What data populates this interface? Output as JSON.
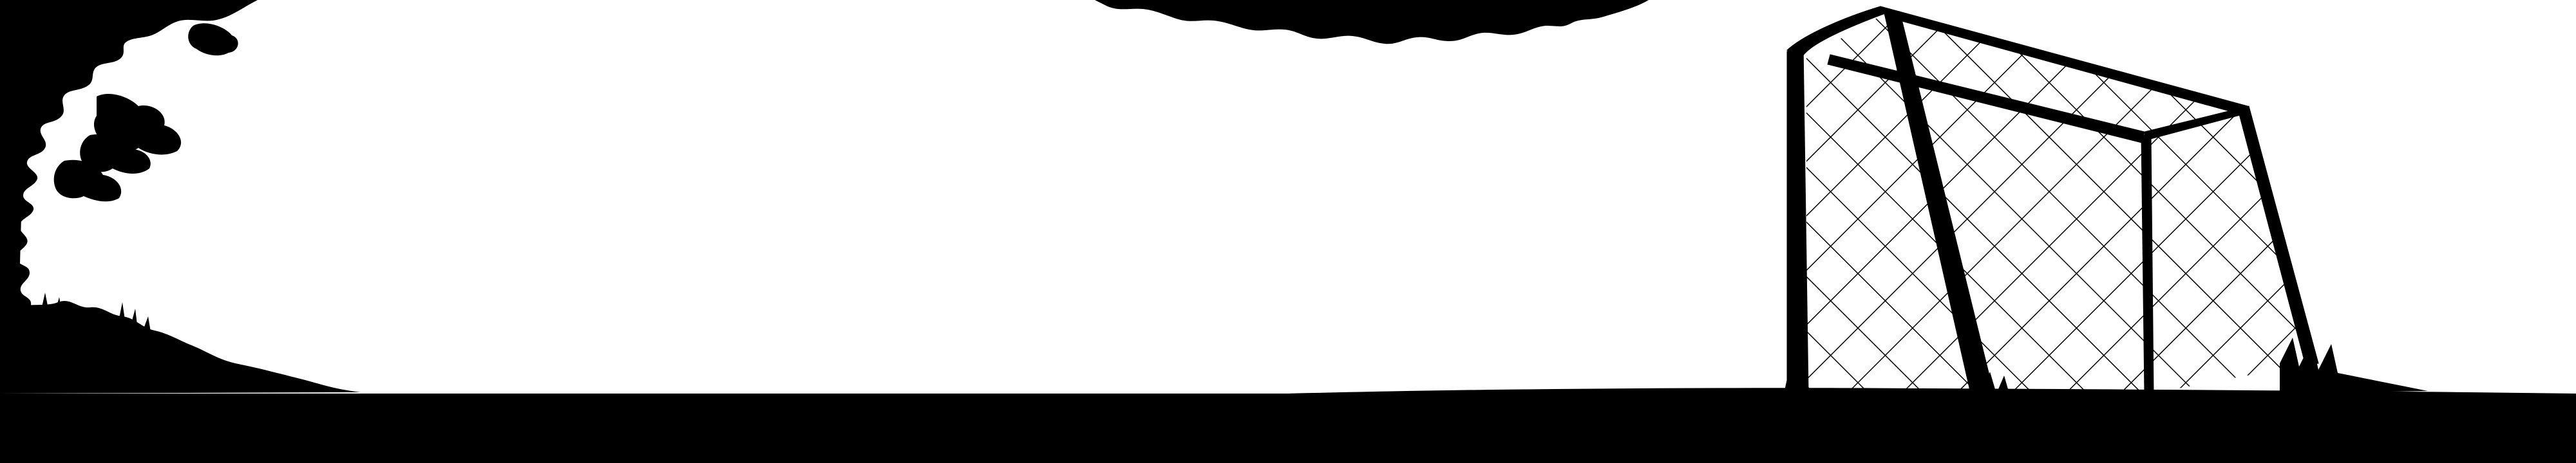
{
  "scene": {
    "background_color": "#ffffff",
    "silhouette_color": "#000000",
    "elements": [
      {
        "name": "tree-canopy-left"
      },
      {
        "name": "tree-canopy-top"
      },
      {
        "name": "soccer-goal-frame"
      },
      {
        "name": "goal-net"
      },
      {
        "name": "grass-tufts"
      },
      {
        "name": "ground-strip"
      }
    ]
  }
}
